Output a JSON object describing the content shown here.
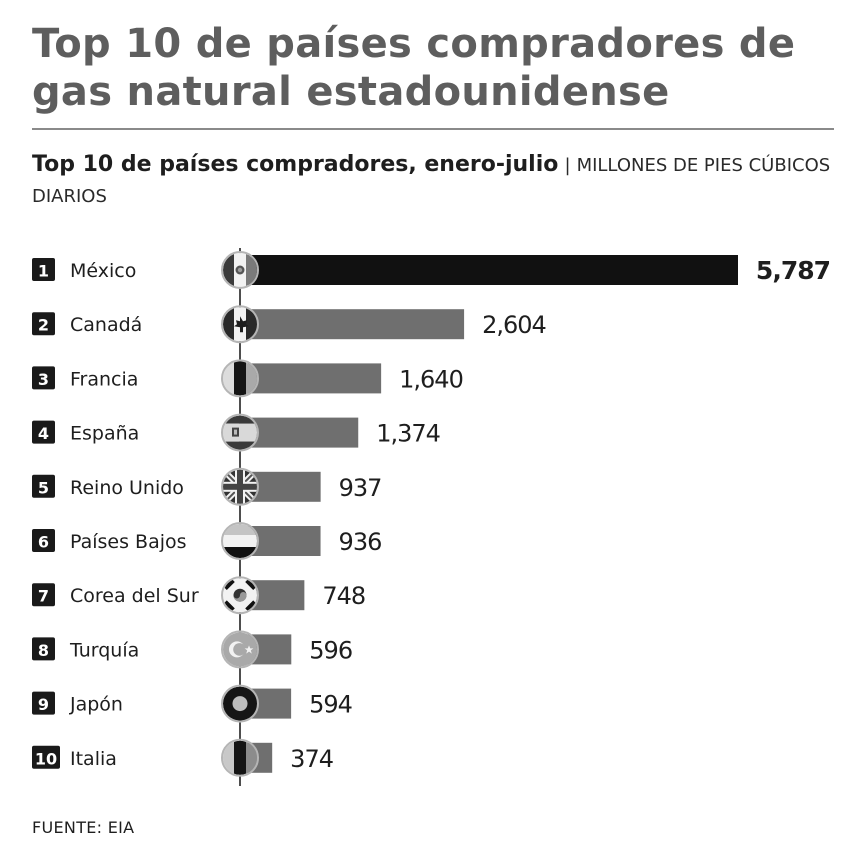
{
  "title": "Top 10 de países compradores de gas natural estadounidense",
  "subtitle": {
    "bold": "Top 10 de países compradores, enero-julio",
    "separator": "|",
    "units": "MILLONES DE PIES CÚBICOS DIARIOS"
  },
  "source": "FUENTE: EIA",
  "colors": {
    "first_bar": "#111111",
    "other_bars": "#6f6f6f",
    "badge": "#1a1a1a",
    "axis": "#222222"
  },
  "chart_data": {
    "type": "bar",
    "orientation": "horizontal",
    "title": "Top 10 de países compradores, enero-julio",
    "units": "MILLONES DE PIES CÚBICOS DIARIOS",
    "xlabel": "",
    "ylabel": "",
    "xlim": [
      0,
      5787
    ],
    "grid": false,
    "categories": [
      "México",
      "Canadá",
      "Francia",
      "España",
      "Reino Unido",
      "Países Bajos",
      "Corea del Sur",
      "Turquía",
      "Japón",
      "Italia"
    ],
    "ranks": [
      "1",
      "2",
      "3",
      "4",
      "5",
      "6",
      "7",
      "8",
      "9",
      "10"
    ],
    "values": [
      5787,
      2604,
      1640,
      1374,
      937,
      936,
      748,
      596,
      594,
      374
    ],
    "value_labels": [
      "5,787",
      "2,604",
      "1,640",
      "1,374",
      "937",
      "936",
      "748",
      "596",
      "594",
      "374"
    ],
    "flag_icons": [
      "mexico-flag-icon",
      "canada-flag-icon",
      "france-flag-icon",
      "spain-flag-icon",
      "uk-flag-icon",
      "netherlands-flag-icon",
      "south-korea-flag-icon",
      "turkey-flag-icon",
      "japan-flag-icon",
      "italy-flag-icon"
    ]
  }
}
